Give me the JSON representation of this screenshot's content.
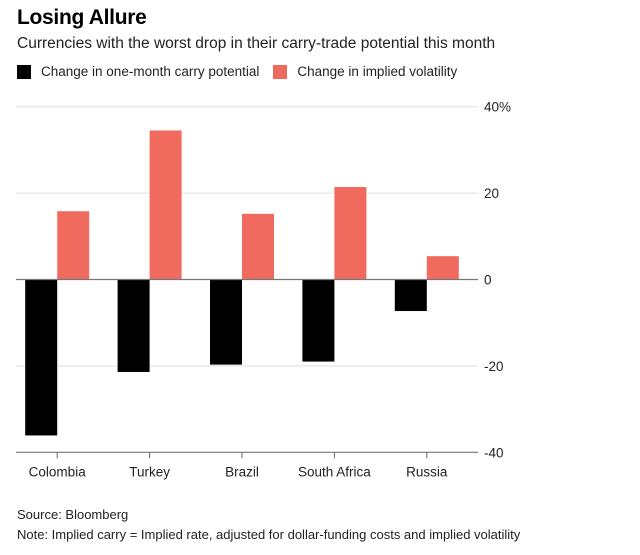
{
  "chart_data": {
    "type": "bar",
    "title": "Losing Allure",
    "subtitle": "Currencies with the worst drop in their carry-trade potential this month",
    "categories": [
      "Colombia",
      "Turkey",
      "Brazil",
      "South Africa",
      "Russia"
    ],
    "series": [
      {
        "name": "Change in one-month carry potential",
        "color": "#000000",
        "values": [
          -36.1,
          -21.4,
          -19.7,
          -19.0,
          -7.3
        ]
      },
      {
        "name": "Change in implied volatility",
        "color": "#f06a5e",
        "values": [
          15.8,
          34.5,
          15.2,
          21.4,
          5.4
        ]
      }
    ],
    "ylim": [
      -40,
      40
    ],
    "yticks": [
      40,
      20,
      0,
      -20,
      -40
    ],
    "ytick_labels": [
      "40%",
      "20",
      "0",
      "-20",
      "-40"
    ],
    "y_axis_side": "right",
    "grid": true,
    "legend_placement": "top-left",
    "xlabel": "",
    "ylabel": ""
  },
  "footer": {
    "source": "Source: Bloomberg",
    "note": "Note: Implied carry = Implied rate, adjusted for dollar-funding costs and implied volatility"
  }
}
